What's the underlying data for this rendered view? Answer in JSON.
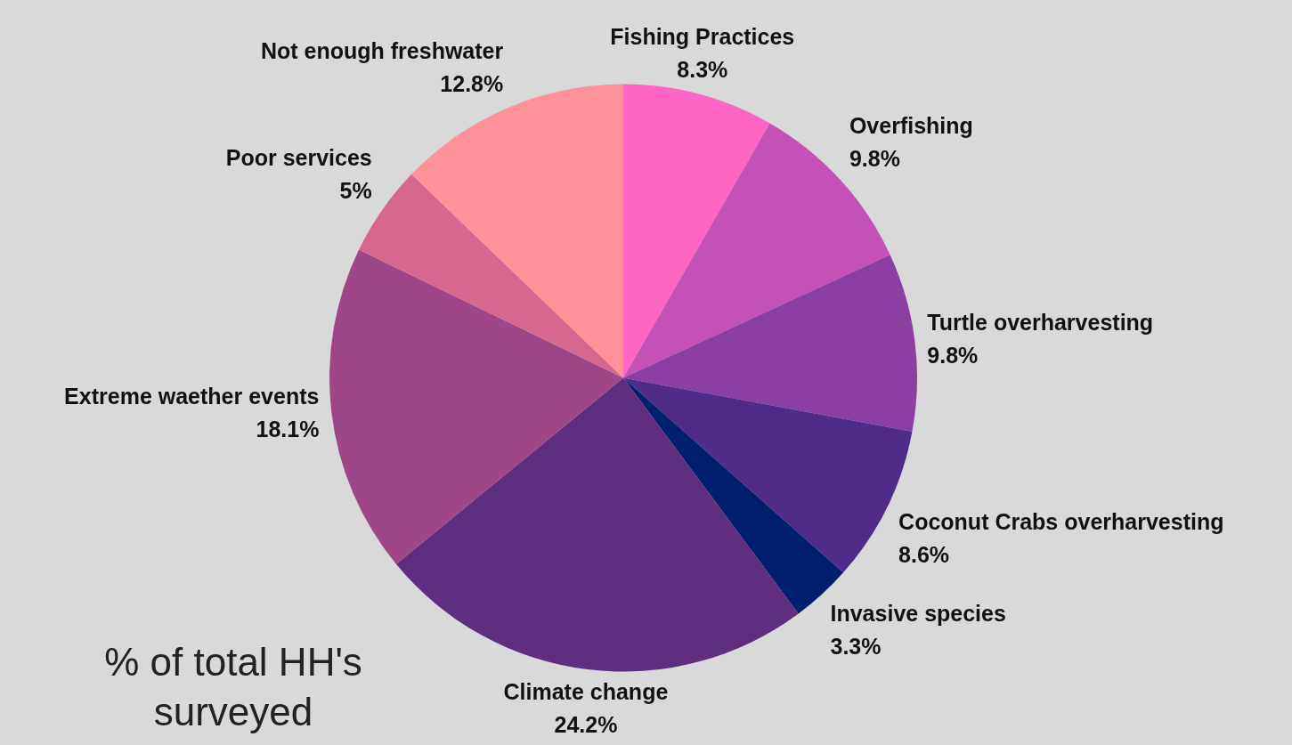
{
  "chart_data": {
    "type": "pie",
    "categories": [
      "Fishing Practices",
      "Overfishing",
      "Turtle overharvesting",
      "Coconut Crabs overharvesting",
      "Invasive species",
      "Climate change",
      "Extreme waether events",
      "Poor services",
      "Not enough freshwater"
    ],
    "values": [
      8.3,
      9.8,
      9.8,
      8.6,
      3.3,
      24.2,
      18.1,
      5,
      12.8
    ],
    "colors": [
      "#ff66c4",
      "#c452b6",
      "#8b3fa3",
      "#502c8a",
      "#001f6f",
      "#5f2e7e",
      "#9e4688",
      "#d6688f",
      "#ff9299"
    ],
    "value_labels": [
      "8.3%",
      "9.8%",
      "9.8%",
      "8.6%",
      "3.3%",
      "24.2%",
      "18.1%",
      "5%",
      "12.8%"
    ],
    "annotations": [
      "% of total HH's surveyed"
    ]
  }
}
